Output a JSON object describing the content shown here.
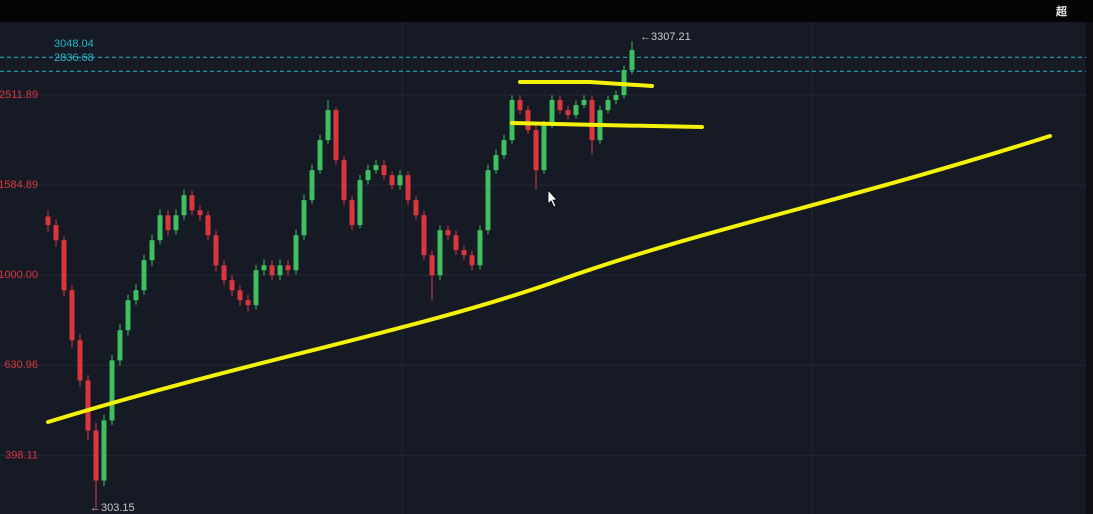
{
  "chart_data": {
    "type": "candlestick",
    "log_scale": true,
    "grid": true,
    "up_color": "#3fbf5f",
    "down_color": "#d9363e",
    "tick_color": "#d9363e",
    "price_line_color": "#27b5c9",
    "ylim": [
      295,
      3650
    ],
    "yticks": [
      398.11,
      630.96,
      {
        "value": 1000,
        "label": "1000.00"
      },
      1584.89,
      2511.89
    ],
    "price_lines": [
      3048.04,
      2836.68
    ],
    "annotations": [
      "←303.15",
      "←3307.21"
    ],
    "watermark": "超",
    "open": [
      1350,
      1292,
      1196,
      926,
      717,
      584,
      452,
      350,
      476,
      647,
      755,
      880,
      926,
      1080,
      1196,
      1359,
      1259,
      1359,
      1506,
      1394,
      1359,
      1227,
      1052,
      975,
      926,
      880,
      858,
      1026,
      1052,
      1000,
      1052,
      1026,
      1227,
      1468,
      1711,
      1995,
      2326,
      1801,
      1468,
      1292,
      1626,
      1711,
      1756,
      1668,
      1585,
      1668,
      1468,
      1359,
      1108,
      1000,
      1259,
      1227,
      1137,
      1108,
      1052,
      1259,
      1711,
      1848,
      1995,
      2449,
      2326,
      2100,
      1711,
      2154,
      2449,
      2326,
      2268,
      2387,
      2449,
      1995,
      2326,
      2449,
      2512,
      2855
    ],
    "high": [
      1390,
      1330,
      1220,
      950,
      740,
      600,
      470,
      490,
      665,
      780,
      905,
      955,
      1110,
      1230,
      1400,
      1395,
      1400,
      1550,
      1540,
      1430,
      1390,
      1255,
      1080,
      1000,
      950,
      905,
      1055,
      1085,
      1080,
      1085,
      1080,
      1260,
      1510,
      1760,
      2050,
      2449,
      2360,
      1840,
      1500,
      1670,
      1760,
      1805,
      1800,
      1700,
      1710,
      1700,
      1500,
      1390,
      1135,
      1290,
      1290,
      1255,
      1165,
      1135,
      1290,
      1760,
      1900,
      2050,
      2510,
      2510,
      2380,
      2150,
      2200,
      2510,
      2500,
      2380,
      2440,
      2510,
      2500,
      2380,
      2500,
      2570,
      2920,
      3307.21
    ],
    "low": [
      1250,
      1160,
      900,
      690,
      565,
      430,
      303.15,
      340,
      465,
      630,
      735,
      860,
      905,
      1050,
      1170,
      1225,
      1230,
      1330,
      1360,
      1320,
      1195,
      1020,
      950,
      900,
      855,
      830,
      840,
      1000,
      975,
      975,
      1000,
      1005,
      1200,
      1440,
      1680,
      1960,
      1760,
      1430,
      1260,
      1270,
      1590,
      1680,
      1630,
      1550,
      1550,
      1430,
      1330,
      1080,
      880,
      975,
      1195,
      1110,
      1080,
      1025,
      1030,
      1235,
      1680,
      1810,
      1960,
      2280,
      2060,
      1546,
      1680,
      2120,
      2280,
      2220,
      2230,
      2350,
      1850,
      1960,
      2290,
      2400,
      2470,
      2800
    ],
    "close": [
      1292,
      1196,
      926,
      717,
      584,
      452,
      350,
      476,
      647,
      755,
      880,
      926,
      1080,
      1196,
      1359,
      1259,
      1359,
      1506,
      1394,
      1359,
      1227,
      1052,
      975,
      926,
      880,
      858,
      1026,
      1052,
      1000,
      1052,
      1026,
      1227,
      1468,
      1711,
      1995,
      2326,
      1801,
      1468,
      1292,
      1626,
      1711,
      1756,
      1668,
      1585,
      1668,
      1468,
      1359,
      1108,
      1000,
      1259,
      1227,
      1137,
      1108,
      1052,
      1259,
      1711,
      1848,
      1995,
      2449,
      2326,
      2100,
      1711,
      2154,
      2449,
      2326,
      2268,
      2387,
      2449,
      1995,
      2326,
      2449,
      2512,
      2855,
      3162
    ]
  }
}
